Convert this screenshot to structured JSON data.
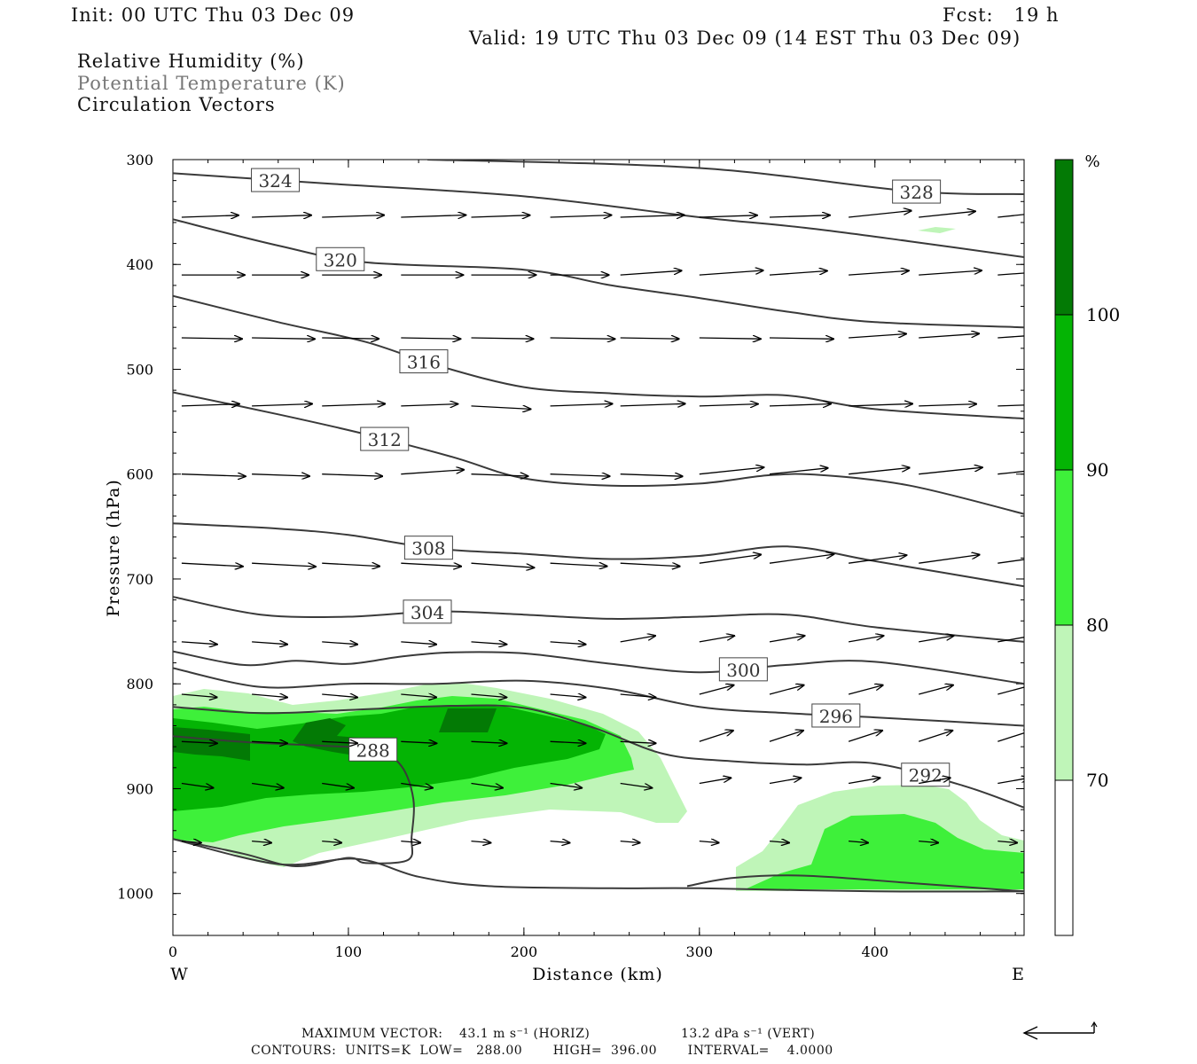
{
  "header": {
    "init": "Init: 00 UTC Thu 03 Dec 09",
    "fcst": "Fcst:   19 h",
    "valid": "Valid: 19 UTC Thu 03 Dec 09 (14 EST Thu 03 Dec 09)",
    "field_rh": "Relative Humidity (%)",
    "field_theta": "Potential Temperature (K)",
    "field_vec": "Circulation Vectors"
  },
  "footer": {
    "max_vector_label": "MAXIMUM VECTOR:",
    "max_horiz": "43.1 m s⁻¹ (HORIZ)",
    "max_vert": "13.2 dPa s⁻¹ (VERT)",
    "contours": "CONTOURS:  UNITS=K  LOW=   288.00       HIGH=  396.00       INTERVAL=    4.0000"
  },
  "colors": {
    "rh_70": "#bff5b8",
    "rh_80": "#3ef03a",
    "rh_90": "#04b404",
    "rh_100": "#037a05",
    "contour": "#3a3a3a"
  },
  "chart_data": {
    "type": "cross-section",
    "xlabel": "Distance (km)",
    "ylabel": "Pressure (hPa)",
    "xlim": [
      0,
      485
    ],
    "ylim": [
      1040,
      300
    ],
    "x_ticks": [
      "0",
      "100",
      "200",
      "300",
      "400"
    ],
    "y_ticks": [
      "300",
      "400",
      "500",
      "600",
      "700",
      "800",
      "900",
      "1000"
    ],
    "x_end_labels": {
      "west": "W",
      "east": "E"
    },
    "colorbar": {
      "unit": "%",
      "levels": [
        "70",
        "80",
        "90",
        "100"
      ]
    },
    "theta_contours": [
      {
        "label": "328",
        "pts": [
          [
            145,
            300
          ],
          [
            300,
            308
          ],
          [
            420,
            330
          ],
          [
            485,
            333
          ]
        ]
      },
      {
        "label": "324",
        "pts": [
          [
            0,
            313
          ],
          [
            90,
            323
          ],
          [
            200,
            335
          ],
          [
            300,
            355
          ],
          [
            360,
            365
          ],
          [
            420,
            378
          ],
          [
            485,
            393
          ]
        ]
      },
      {
        "label": "320",
        "pts": [
          [
            0,
            357
          ],
          [
            60,
            382
          ],
          [
            110,
            398
          ],
          [
            200,
            405
          ],
          [
            250,
            420
          ],
          [
            300,
            432
          ],
          [
            350,
            445
          ],
          [
            400,
            455
          ],
          [
            485,
            460
          ]
        ]
      },
      {
        "label": "316",
        "pts": [
          [
            0,
            430
          ],
          [
            60,
            455
          ],
          [
            110,
            474
          ],
          [
            150,
            496
          ],
          [
            200,
            517
          ],
          [
            250,
            523
          ],
          [
            300,
            526
          ],
          [
            350,
            525
          ],
          [
            400,
            538
          ],
          [
            485,
            547
          ]
        ]
      },
      {
        "label": "312",
        "pts": [
          [
            0,
            522
          ],
          [
            60,
            543
          ],
          [
            110,
            562
          ],
          [
            160,
            584
          ],
          [
            200,
            604
          ],
          [
            250,
            611
          ],
          [
            300,
            609
          ],
          [
            340,
            601
          ],
          [
            370,
            601
          ],
          [
            420,
            611
          ],
          [
            485,
            638
          ]
        ]
      },
      {
        "label": "308",
        "pts": [
          [
            0,
            647
          ],
          [
            60,
            652
          ],
          [
            100,
            658
          ],
          [
            150,
            671
          ],
          [
            200,
            676
          ],
          [
            250,
            681
          ],
          [
            300,
            678
          ],
          [
            350,
            669
          ],
          [
            400,
            683
          ],
          [
            485,
            707
          ]
        ]
      },
      {
        "label": "304",
        "pts": [
          [
            0,
            717
          ],
          [
            50,
            734
          ],
          [
            100,
            736
          ],
          [
            150,
            731
          ],
          [
            200,
            734
          ],
          [
            250,
            738
          ],
          [
            300,
            736
          ],
          [
            350,
            734
          ],
          [
            400,
            746
          ],
          [
            485,
            760
          ]
        ]
      },
      {
        "label": "300",
        "pts": [
          [
            0,
            769
          ],
          [
            40,
            782
          ],
          [
            70,
            778
          ],
          [
            100,
            781
          ],
          [
            130,
            774
          ],
          [
            160,
            770
          ],
          [
            200,
            771
          ],
          [
            250,
            781
          ],
          [
            300,
            789
          ],
          [
            350,
            782
          ],
          [
            400,
            779
          ],
          [
            485,
            800
          ]
        ]
      },
      {
        "label": "296",
        "pts": [
          [
            0,
            785
          ],
          [
            50,
            803
          ],
          [
            100,
            800
          ],
          [
            150,
            800
          ],
          [
            200,
            797
          ],
          [
            250,
            805
          ],
          [
            300,
            822
          ],
          [
            350,
            828
          ],
          [
            400,
            832
          ],
          [
            485,
            840
          ]
        ]
      },
      {
        "label": "292",
        "pts": [
          [
            0,
            822
          ],
          [
            50,
            828
          ],
          [
            100,
            825
          ],
          [
            160,
            821
          ],
          [
            200,
            823
          ],
          [
            240,
            842
          ],
          [
            280,
            867
          ],
          [
            320,
            874
          ],
          [
            360,
            877
          ],
          [
            400,
            876
          ],
          [
            450,
            897
          ],
          [
            485,
            918
          ]
        ]
      },
      {
        "label": "288",
        "pts": [
          [
            0,
            850
          ],
          [
            45,
            856
          ],
          [
            85,
            859
          ],
          [
            115,
            863
          ],
          [
            130,
            878
          ],
          [
            137,
            910
          ],
          [
            136,
            946
          ],
          [
            134,
            968
          ],
          [
            110,
            971
          ],
          [
            100,
            966
          ],
          [
            70,
            974
          ],
          [
            40,
            962
          ],
          [
            0,
            948
          ]
        ]
      },
      {
        "label": "",
        "pts": [
          [
            0,
            948
          ],
          [
            60,
            972
          ],
          [
            105,
            967
          ],
          [
            140,
            984
          ],
          [
            180,
            993
          ],
          [
            250,
            995
          ],
          [
            300,
            995
          ],
          [
            400,
            998
          ],
          [
            485,
            998
          ]
        ]
      },
      {
        "label": "",
        "pts": [
          [
            293,
            993
          ],
          [
            320,
            985
          ],
          [
            360,
            983
          ],
          [
            420,
            990
          ],
          [
            485,
            998
          ]
        ]
      }
    ],
    "vectors": {
      "rows_hpa": [
        355,
        410,
        470,
        535,
        600,
        685,
        760,
        810,
        855,
        895,
        950
      ],
      "columns_km": [
        5,
        45,
        85,
        130,
        170,
        215,
        255,
        300,
        340,
        385,
        425,
        470
      ]
    }
  }
}
